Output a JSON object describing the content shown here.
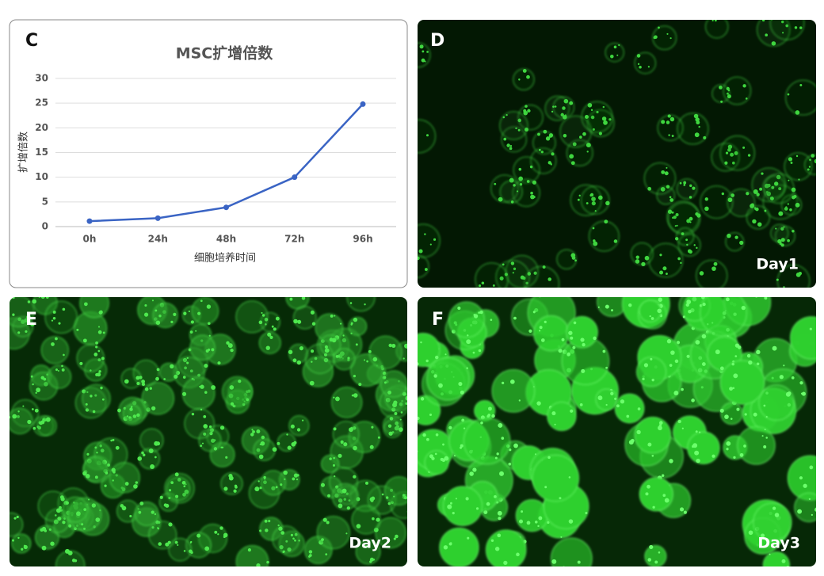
{
  "chart_data": {
    "type": "line",
    "title": "MSC扩增倍数",
    "x_label": "细胞培养时间",
    "y_label": "扩增倍数",
    "categories": [
      "0h",
      "24h",
      "48h",
      "72h",
      "96h"
    ],
    "values": [
      1.1,
      1.7,
      3.9,
      10,
      24.8
    ],
    "color": "#3a64c4",
    "ylim": [
      0,
      30
    ],
    "yticks": [
      0,
      5,
      10,
      15,
      20,
      25,
      30
    ],
    "grid": true
  },
  "panels": [
    {
      "label": "C"
    },
    {
      "label": "D",
      "caption": "Day1"
    },
    {
      "label": "E",
      "caption": "Day2"
    },
    {
      "label": "F",
      "caption": "Day3"
    }
  ]
}
